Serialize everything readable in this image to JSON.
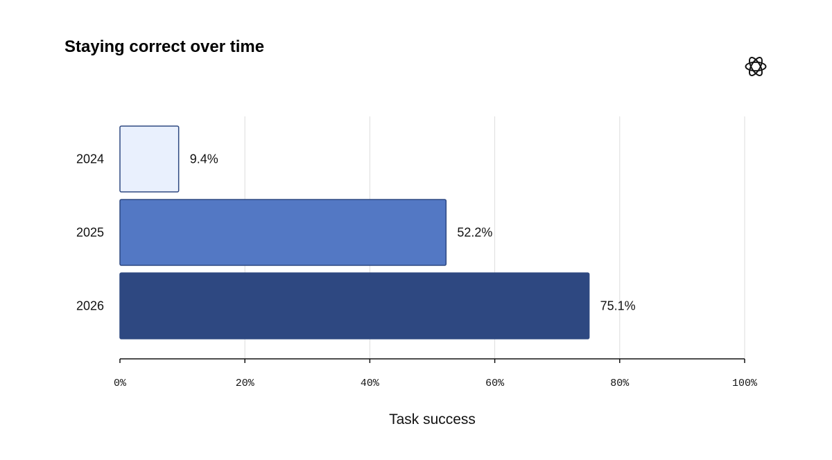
{
  "chart_data": {
    "type": "bar",
    "orientation": "horizontal",
    "title": "Staying correct over time",
    "categories": [
      "2024",
      "2025",
      "2026"
    ],
    "values": [
      9.4,
      52.2,
      75.1
    ],
    "data_labels": [
      "9.4%",
      "52.2%",
      "75.1%"
    ],
    "bar_colors": [
      "#e9f0fd",
      "#5378c4",
      "#2e4881"
    ],
    "bar_stroke": "#2e4881",
    "xlabel": "Task success",
    "ylabel": "",
    "xlim": [
      0,
      100
    ],
    "xticks": [
      0,
      20,
      40,
      60,
      80,
      100
    ],
    "xtick_labels": [
      "0%",
      "20%",
      "40%",
      "60%",
      "80%",
      "100%"
    ],
    "grid": "vertical",
    "grid_color": "#dddddd"
  },
  "logo": {
    "icon": "openai-logo-icon"
  }
}
